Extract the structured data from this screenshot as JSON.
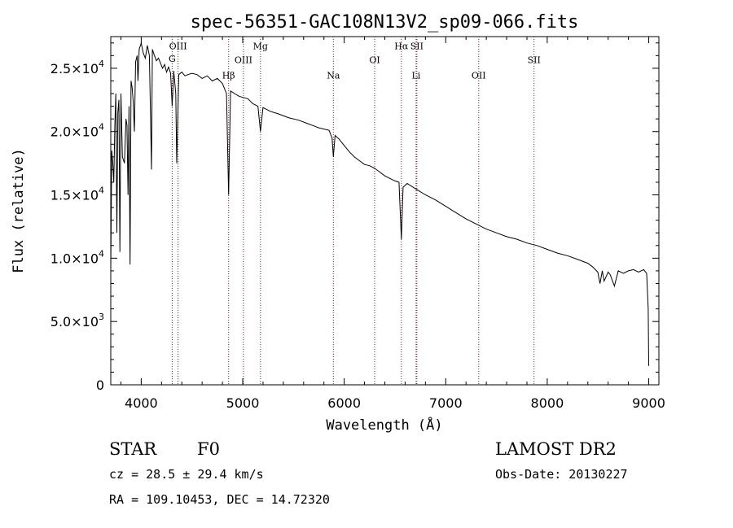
{
  "chart_data": {
    "type": "line",
    "title": "spec-56351-GAC108N13V2_sp09-066.fits",
    "xlabel": "Wavelength (Å)",
    "ylabel": "Flux (relative)",
    "xlim": [
      3700,
      9100
    ],
    "ylim": [
      0,
      27500
    ],
    "x_ticks": [
      4000,
      5000,
      6000,
      7000,
      8000,
      9000
    ],
    "x_tick_labels": [
      "4000",
      "5000",
      "6000",
      "7000",
      "8000",
      "9000"
    ],
    "y_ticks": [
      0,
      5000,
      10000,
      15000,
      20000,
      25000
    ],
    "y_tick_labels": [
      {
        "mant": "0",
        "exp": ""
      },
      {
        "mant": "5.0×10",
        "exp": "3"
      },
      {
        "mant": "1.0×10",
        "exp": "4"
      },
      {
        "mant": "1.5×10",
        "exp": "4"
      },
      {
        "mant": "2.0×10",
        "exp": "4"
      },
      {
        "mant": "2.5×10",
        "exp": "4"
      }
    ],
    "grid": false,
    "line_color": "#000000",
    "marker_color": "#8b1a1a",
    "spectral_lines": [
      {
        "label": "G",
        "wavelength": 4305,
        "label_y": 25500
      },
      {
        "label": "OIII",
        "wavelength": 4363,
        "label_y": 26500
      },
      {
        "label": "Hβ",
        "wavelength": 4861,
        "label_y": 24200
      },
      {
        "label": "OIII",
        "wavelength": 5007,
        "label_y": 25400
      },
      {
        "label": "Mg",
        "wavelength": 5175,
        "label_y": 26500
      },
      {
        "label": "Na",
        "wavelength": 5893,
        "label_y": 24200
      },
      {
        "label": "OI",
        "wavelength": 6300,
        "label_y": 25400
      },
      {
        "label": "Hα",
        "wavelength": 6563,
        "label_y": 26500
      },
      {
        "label": "SII",
        "wavelength": 6716,
        "label_y": 26500
      },
      {
        "label": "Li",
        "wavelength": 6708,
        "label_y": 24200
      },
      {
        "label": "OII",
        "wavelength": 7325,
        "label_y": 24200
      },
      {
        "label": "SII",
        "wavelength": 7870,
        "label_y": 25400
      }
    ],
    "series": [
      {
        "x": [
          3700,
          3710,
          3720,
          3730,
          3740,
          3750,
          3760,
          3770,
          3780,
          3790,
          3800,
          3815,
          3835,
          3850,
          3860,
          3870,
          3880,
          3890,
          3900,
          3910,
          3920,
          3933,
          3945,
          3960,
          3968,
          3980,
          4000,
          4020,
          4040,
          4060,
          4080,
          4090,
          4101,
          4110,
          4130,
          4150,
          4170,
          4190,
          4210,
          4230,
          4250,
          4270,
          4290,
          4305,
          4320,
          4340,
          4350,
          4370,
          4400,
          4430,
          4460,
          4500,
          4550,
          4600,
          4650,
          4700,
          4750,
          4800,
          4840,
          4861,
          4880,
          4920,
          4960,
          5000,
          5050,
          5100,
          5150,
          5175,
          5200,
          5270,
          5350,
          5450,
          5550,
          5650,
          5750,
          5850,
          5880,
          5893,
          5910,
          5950,
          6000,
          6050,
          6100,
          6150,
          6200,
          6250,
          6300,
          6350,
          6400,
          6450,
          6500,
          6540,
          6563,
          6580,
          6620,
          6700,
          6800,
          6900,
          7000,
          7100,
          7200,
          7300,
          7400,
          7500,
          7600,
          7700,
          7800,
          7900,
          8000,
          8100,
          8200,
          8300,
          8400,
          8450,
          8498,
          8520,
          8542,
          8560,
          8600,
          8620,
          8662,
          8700,
          8750,
          8800,
          8850,
          8900,
          8950,
          8980,
          8995,
          9000
        ],
        "y": [
          9000,
          18500,
          17500,
          16000,
          20500,
          23000,
          12000,
          21500,
          22500,
          10500,
          23000,
          18000,
          17500,
          21000,
          20500,
          15000,
          22000,
          9500,
          24000,
          23500,
          22500,
          20000,
          25500,
          26000,
          24000,
          26500,
          27000,
          26200,
          25800,
          26800,
          26000,
          22000,
          17000,
          26500,
          26000,
          25600,
          25800,
          25400,
          25000,
          25300,
          24700,
          25100,
          24600,
          22000,
          24800,
          23000,
          17500,
          24500,
          24700,
          24400,
          24500,
          24600,
          24500,
          24200,
          24400,
          24000,
          24200,
          23800,
          23000,
          15000,
          23200,
          23000,
          22800,
          22700,
          22600,
          22200,
          22000,
          20000,
          21900,
          21600,
          21400,
          21100,
          20900,
          20600,
          20300,
          20100,
          19500,
          18000,
          19700,
          19400,
          18900,
          18400,
          18000,
          17700,
          17400,
          17300,
          17100,
          16800,
          16500,
          16300,
          16100,
          16000,
          11500,
          15600,
          15900,
          15500,
          15000,
          14600,
          14100,
          13600,
          13100,
          12700,
          12300,
          12000,
          11700,
          11500,
          11200,
          11000,
          10700,
          10400,
          10200,
          9900,
          9600,
          9300,
          8900,
          8000,
          9000,
          8200,
          8900,
          8700,
          7800,
          9000,
          8800,
          9000,
          9100,
          8900,
          9100,
          8800,
          6000,
          1500
        ]
      }
    ]
  },
  "info": {
    "star_label": "STAR",
    "subclass": "F0",
    "survey": "LAMOST DR2",
    "cz": "cz = 28.5 ± 29.4 km/s",
    "obs_date": "Obs-Date: 20130227",
    "radec": "RA = 109.10453, DEC =  14.72320"
  }
}
